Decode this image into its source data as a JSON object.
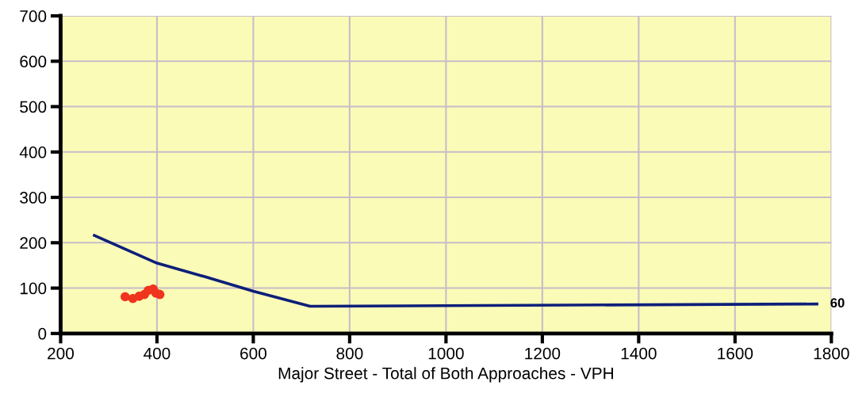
{
  "chart_data": {
    "type": "line",
    "xlabel": "Major Street - Total of Both Approaches - VPH",
    "xlim": [
      200,
      1800
    ],
    "xticks": [
      200,
      400,
      600,
      800,
      1000,
      1200,
      1400,
      1600,
      1800
    ],
    "ylim": [
      0,
      700
    ],
    "yticks": [
      0,
      100,
      200,
      300,
      400,
      500,
      600,
      700
    ],
    "grid": true,
    "line_style": "solid",
    "series": [
      {
        "color": "#0d1f7a",
        "x": [
          270,
          400,
          500,
          600,
          718,
          1770
        ],
        "values": [
          216,
          155,
          125,
          93,
          60,
          65
        ]
      },
      {
        "type": "scatter",
        "marker": "circle",
        "color": "#f0341e",
        "x": [
          334,
          350,
          363,
          374,
          382,
          392,
          398,
          406
        ],
        "values": [
          81,
          77,
          82,
          86,
          95,
          98,
          89,
          86
        ]
      }
    ],
    "annotations": [
      {
        "text": "60",
        "x": 1770,
        "y": 65
      }
    ]
  }
}
